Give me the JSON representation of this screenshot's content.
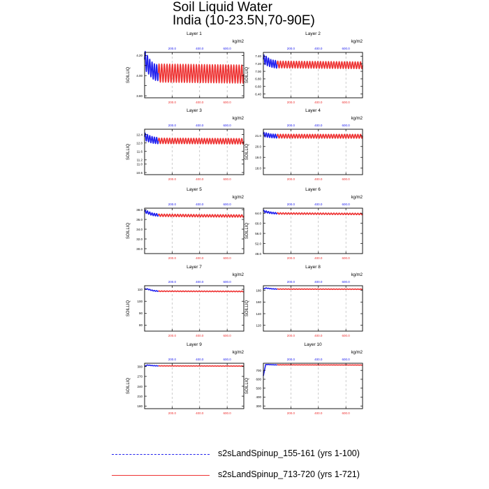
{
  "title": {
    "line1": "Soil Liquid Water",
    "line2": "India (10-23.5N,70-90E)"
  },
  "legend": [
    {
      "label": "s2sLandSpinup_155-161 (yrs 1-100)",
      "color": "#2222ee",
      "style": "dashed"
    },
    {
      "label": "s2sLandSpinup_713-720 (yrs 1-721)",
      "color": "#ee3333",
      "style": "solid"
    }
  ],
  "chart_data": [
    {
      "type": "line",
      "title": "Layer 1",
      "units": "kg/m2",
      "ylabel": "SOILLIQ",
      "yticks": [
        3.8,
        3.9,
        4.0,
        4.1,
        4.2
      ],
      "ytick_labels": [
        "3.80",
        "",
        "4.00",
        "",
        "4.20"
      ],
      "ylim": [
        3.78,
        4.23
      ],
      "xlim": [
        0,
        721
      ],
      "xticks": [
        200,
        400,
        600
      ],
      "xtick_labels": [
        "200.0",
        "400.0",
        "600.0"
      ],
      "top_tick_labels": [
        "200.0",
        "400.0",
        "600.0"
      ],
      "series": [
        {
          "name": "s2sLandSpinup_155-161 (yrs 1-100)",
          "color": "#2222ee",
          "x_end": 100,
          "mean": [
            4.16,
            4.12,
            4.09,
            4.06,
            4.04,
            4.03,
            4.03
          ],
          "amplitude": [
            0.09,
            0.09,
            0.08,
            0.08,
            0.08,
            0.08,
            0.08
          ]
        },
        {
          "name": "s2sLandSpinup_713-720 (yrs 1-721)",
          "color": "#ee3333",
          "x_end": 721,
          "mean": [
            4.025,
            4.02,
            4.015
          ],
          "amplitude": [
            0.09,
            0.09,
            0.09
          ]
        }
      ]
    },
    {
      "type": "line",
      "title": "Layer 2",
      "units": "kg/m2",
      "ylabel": "SOILLIQ",
      "yticks": [
        6.4,
        6.6,
        6.8,
        7.0,
        7.2,
        7.4
      ],
      "ytick_labels": [
        "6.40",
        "6.60",
        "6.80",
        "7.00",
        "7.20",
        "7.40"
      ],
      "ylim": [
        6.3,
        7.5
      ],
      "xlim": [
        0,
        721
      ],
      "xticks": [
        200,
        400,
        600
      ],
      "xtick_labels": [
        "200.0",
        "400.0",
        "600.0"
      ],
      "top_tick_labels": [
        "200.0",
        "400.0",
        "600.0"
      ],
      "series": [
        {
          "name": "s2sLandSpinup_155-161 (yrs 1-100)",
          "color": "#2222ee",
          "x_end": 100,
          "mean": [
            7.32,
            7.29,
            7.25,
            7.22,
            7.2,
            7.19,
            7.18
          ],
          "amplitude": [
            0.12,
            0.12,
            0.11,
            0.1,
            0.1,
            0.1,
            0.1
          ]
        },
        {
          "name": "s2sLandSpinup_713-720 (yrs 1-721)",
          "color": "#ee3333",
          "x_end": 721,
          "mean": [
            7.18,
            7.17,
            7.16
          ],
          "amplitude": [
            0.09,
            0.09,
            0.09
          ]
        }
      ]
    },
    {
      "type": "line",
      "title": "Layer 3",
      "units": "kg/m2",
      "ylabel": "SOILLIQ",
      "yticks": [
        10.6,
        11.0,
        11.2,
        11.6,
        12.0,
        12.4
      ],
      "ytick_labels": [
        "10.6",
        "11.0",
        "11.2",
        "11.6",
        "12.0",
        "12.4"
      ],
      "ylim": [
        10.5,
        12.65
      ],
      "xlim": [
        0,
        721
      ],
      "xticks": [
        200,
        400,
        600
      ],
      "xtick_labels": [
        "200.0",
        "400.0",
        "600.0"
      ],
      "top_tick_labels": [
        "200.0",
        "400.0",
        "600.0"
      ],
      "series": [
        {
          "name": "s2sLandSpinup_155-161 (yrs 1-100)",
          "color": "#2222ee",
          "x_end": 100,
          "mean": [
            12.3,
            12.25,
            12.2,
            12.16,
            12.13,
            12.12,
            12.11
          ],
          "amplitude": [
            0.18,
            0.17,
            0.16,
            0.16,
            0.15,
            0.15,
            0.15
          ]
        },
        {
          "name": "s2sLandSpinup_713-720 (yrs 1-721)",
          "color": "#ee3333",
          "x_end": 721,
          "mean": [
            12.1,
            12.09,
            12.08
          ],
          "amplitude": [
            0.13,
            0.13,
            0.13
          ]
        }
      ]
    },
    {
      "type": "line",
      "title": "Layer 4",
      "units": "kg/m2",
      "ylabel": "SOILLIQ",
      "yticks": [
        18.0,
        19.0,
        20.0,
        21.0
      ],
      "ytick_labels": [
        "18.0",
        "19.0",
        "20.0",
        "21.0"
      ],
      "ylim": [
        17.4,
        21.6
      ],
      "xlim": [
        0,
        721
      ],
      "xticks": [
        200,
        400,
        600
      ],
      "xtick_labels": [
        "200.0",
        "400.0",
        "600.0"
      ],
      "top_tick_labels": [
        "200.0",
        "400.0",
        "600.0"
      ],
      "series": [
        {
          "name": "s2sLandSpinup_155-161 (yrs 1-100)",
          "color": "#2222ee",
          "x_end": 100,
          "mean": [
            21.12,
            21.08,
            21.04,
            21.0,
            20.98,
            20.97,
            20.96
          ],
          "amplitude": [
            0.2,
            0.2,
            0.19,
            0.18,
            0.18,
            0.18,
            0.18
          ]
        },
        {
          "name": "s2sLandSpinup_713-720 (yrs 1-721)",
          "color": "#ee3333",
          "x_end": 721,
          "mean": [
            20.96,
            20.95,
            20.95
          ],
          "amplitude": [
            0.18,
            0.18,
            0.18
          ]
        }
      ]
    },
    {
      "type": "line",
      "title": "Layer 5",
      "units": "kg/m2",
      "ylabel": "SOILLIQ",
      "yticks": [
        30.0,
        32.0,
        34.0,
        36.0,
        38.0
      ],
      "ytick_labels": [
        "30.0",
        "32.0",
        "34.0",
        "36.0",
        "38.0"
      ],
      "ylim": [
        29.0,
        38.3
      ],
      "xlim": [
        0,
        721
      ],
      "xticks": [
        200,
        400,
        600
      ],
      "xtick_labels": [
        "200.0",
        "400.0",
        "600.0"
      ],
      "top_tick_labels": [
        "200.0",
        "400.0",
        "600.0"
      ],
      "series": [
        {
          "name": "s2sLandSpinup_155-161 (yrs 1-100)",
          "color": "#2222ee",
          "x_end": 100,
          "mean": [
            37.6,
            37.5,
            37.3,
            37.1,
            37.0,
            36.95,
            36.9
          ],
          "amplitude": [
            0.3,
            0.3,
            0.28,
            0.27,
            0.26,
            0.26,
            0.26
          ]
        },
        {
          "name": "s2sLandSpinup_713-720 (yrs 1-721)",
          "color": "#ee3333",
          "x_end": 721,
          "mean": [
            36.85,
            36.75,
            36.7
          ],
          "amplitude": [
            0.25,
            0.25,
            0.25
          ]
        }
      ]
    },
    {
      "type": "line",
      "title": "Layer 6",
      "units": "kg/m2",
      "ylabel": "SOILLIQ",
      "yticks": [
        48.0,
        52.0,
        56.0,
        60.0,
        64.0
      ],
      "ytick_labels": [
        "48.0",
        "52.0",
        "56.0",
        "60.0",
        "64.0"
      ],
      "ylim": [
        48.0,
        66.0
      ],
      "xlim": [
        0,
        721
      ],
      "xticks": [
        200,
        400,
        600
      ],
      "xtick_labels": [
        "200.0",
        "400.0",
        "600.0"
      ],
      "top_tick_labels": [
        "200.0",
        "400.0",
        "600.0"
      ],
      "series": [
        {
          "name": "s2sLandSpinup_155-161 (yrs 1-100)",
          "color": "#2222ee",
          "x_end": 100,
          "mean": [
            64.8,
            64.6,
            64.4,
            64.2,
            64.1,
            64.0,
            64.0
          ],
          "amplitude": [
            0.4,
            0.4,
            0.35,
            0.35,
            0.3,
            0.3,
            0.3
          ]
        },
        {
          "name": "s2sLandSpinup_713-720 (yrs 1-721)",
          "color": "#ee3333",
          "x_end": 721,
          "mean": [
            63.9,
            63.8,
            63.7
          ],
          "amplitude": [
            0.3,
            0.3,
            0.3
          ]
        }
      ]
    },
    {
      "type": "line",
      "title": "Layer 7",
      "units": "kg/m2",
      "ylabel": "SOILLIQ",
      "yticks": [
        80,
        90,
        100,
        110
      ],
      "ytick_labels": [
        "80",
        "90",
        "100",
        "110"
      ],
      "ylim": [
        75,
        113
      ],
      "xlim": [
        0,
        721
      ],
      "xticks": [
        200,
        400,
        600
      ],
      "xtick_labels": [
        "200.0",
        "400.0",
        "600.0"
      ],
      "top_tick_labels": [
        "200.0",
        "400.0",
        "600.0"
      ],
      "series": [
        {
          "name": "s2sLandSpinup_155-161 (yrs 1-100)",
          "color": "#2222ee",
          "x_end": 100,
          "mean": [
            110.0,
            110.3,
            109.8,
            109.2,
            108.8,
            108.6,
            108.5
          ],
          "amplitude": [
            0.3,
            0.3,
            0.3,
            0.3,
            0.3,
            0.3,
            0.3
          ]
        },
        {
          "name": "s2sLandSpinup_713-720 (yrs 1-721)",
          "color": "#ee3333",
          "x_end": 721,
          "mean": [
            108.4,
            108.3,
            108.2
          ],
          "amplitude": [
            0.3,
            0.3,
            0.3
          ]
        }
      ]
    },
    {
      "type": "line",
      "title": "Layer 8",
      "units": "kg/m2",
      "ylabel": "SOILLIQ",
      "yticks": [
        120,
        140,
        160,
        180
      ],
      "ytick_labels": [
        "120",
        "140",
        "160",
        "180"
      ],
      "ylim": [
        110,
        188
      ],
      "xlim": [
        0,
        721
      ],
      "xticks": [
        200,
        400,
        600
      ],
      "xtick_labels": [
        "200.0",
        "400.0",
        "600.0"
      ],
      "top_tick_labels": [
        "200.0",
        "400.0",
        "600.0"
      ],
      "series": [
        {
          "name": "s2sLandSpinup_155-161 (yrs 1-100)",
          "color": "#2222ee",
          "x_end": 100,
          "mean": [
            182.0,
            184.0,
            183.5,
            183.0,
            182.6,
            182.4,
            182.3
          ],
          "amplitude": [
            0.4,
            0.4,
            0.4,
            0.4,
            0.4,
            0.4,
            0.4
          ]
        },
        {
          "name": "s2sLandSpinup_713-720 (yrs 1-721)",
          "color": "#ee3333",
          "x_end": 721,
          "mean": [
            182.2,
            182.1,
            182.0
          ],
          "amplitude": [
            0.4,
            0.4,
            0.4
          ]
        }
      ]
    },
    {
      "type": "line",
      "title": "Layer 9",
      "units": "kg/m2",
      "ylabel": "SOILLIQ",
      "yticks": [
        180,
        210,
        240,
        270,
        300
      ],
      "ytick_labels": [
        "180",
        "210",
        "240",
        "270",
        "300"
      ],
      "ylim": [
        172,
        310
      ],
      "xlim": [
        0,
        721
      ],
      "xticks": [
        200,
        400,
        600
      ],
      "xtick_labels": [
        "200.0",
        "400.0",
        "600.0"
      ],
      "top_tick_labels": [
        "200.0",
        "400.0",
        "600.0"
      ],
      "series": [
        {
          "name": "s2sLandSpinup_155-161 (yrs 1-100)",
          "color": "#2222ee",
          "x_end": 100,
          "mean": [
            300.0,
            304.5,
            304.0,
            303.0,
            302.6,
            302.3,
            302.1
          ],
          "amplitude": [
            0.5,
            0.5,
            0.5,
            0.5,
            0.5,
            0.5,
            0.5
          ]
        },
        {
          "name": "s2sLandSpinup_713-720 (yrs 1-721)",
          "color": "#ee3333",
          "x_end": 721,
          "mean": [
            302.0,
            301.7,
            301.5
          ],
          "amplitude": [
            0.5,
            0.5,
            0.5
          ]
        }
      ]
    },
    {
      "type": "line",
      "title": "Layer 10",
      "units": "kg/m2",
      "ylabel": "SOILLIQ",
      "yticks": [
        300,
        400,
        500,
        600,
        700
      ],
      "ytick_labels": [
        "300",
        "400",
        "500",
        "600",
        "700"
      ],
      "ylim": [
        270,
        780
      ],
      "xlim": [
        0,
        721
      ],
      "xticks": [
        200,
        400,
        600
      ],
      "xtick_labels": [
        "200.0",
        "400.0",
        "600.0"
      ],
      "top_tick_labels": [
        "200.0",
        "400.0",
        "600.0"
      ],
      "series": [
        {
          "name": "s2sLandSpinup_155-161 (yrs 1-100)",
          "color": "#2222ee",
          "x_end": 100,
          "mean": [
            640,
            765,
            766,
            764,
            763,
            762,
            762
          ],
          "amplitude": [
            1,
            1,
            1,
            1,
            1,
            1,
            1
          ]
        },
        {
          "name": "s2sLandSpinup_713-720 (yrs 1-721)",
          "color": "#ee3333",
          "x_end": 721,
          "mean": [
            762,
            761,
            760
          ],
          "amplitude": [
            1,
            1,
            1
          ]
        }
      ]
    }
  ]
}
